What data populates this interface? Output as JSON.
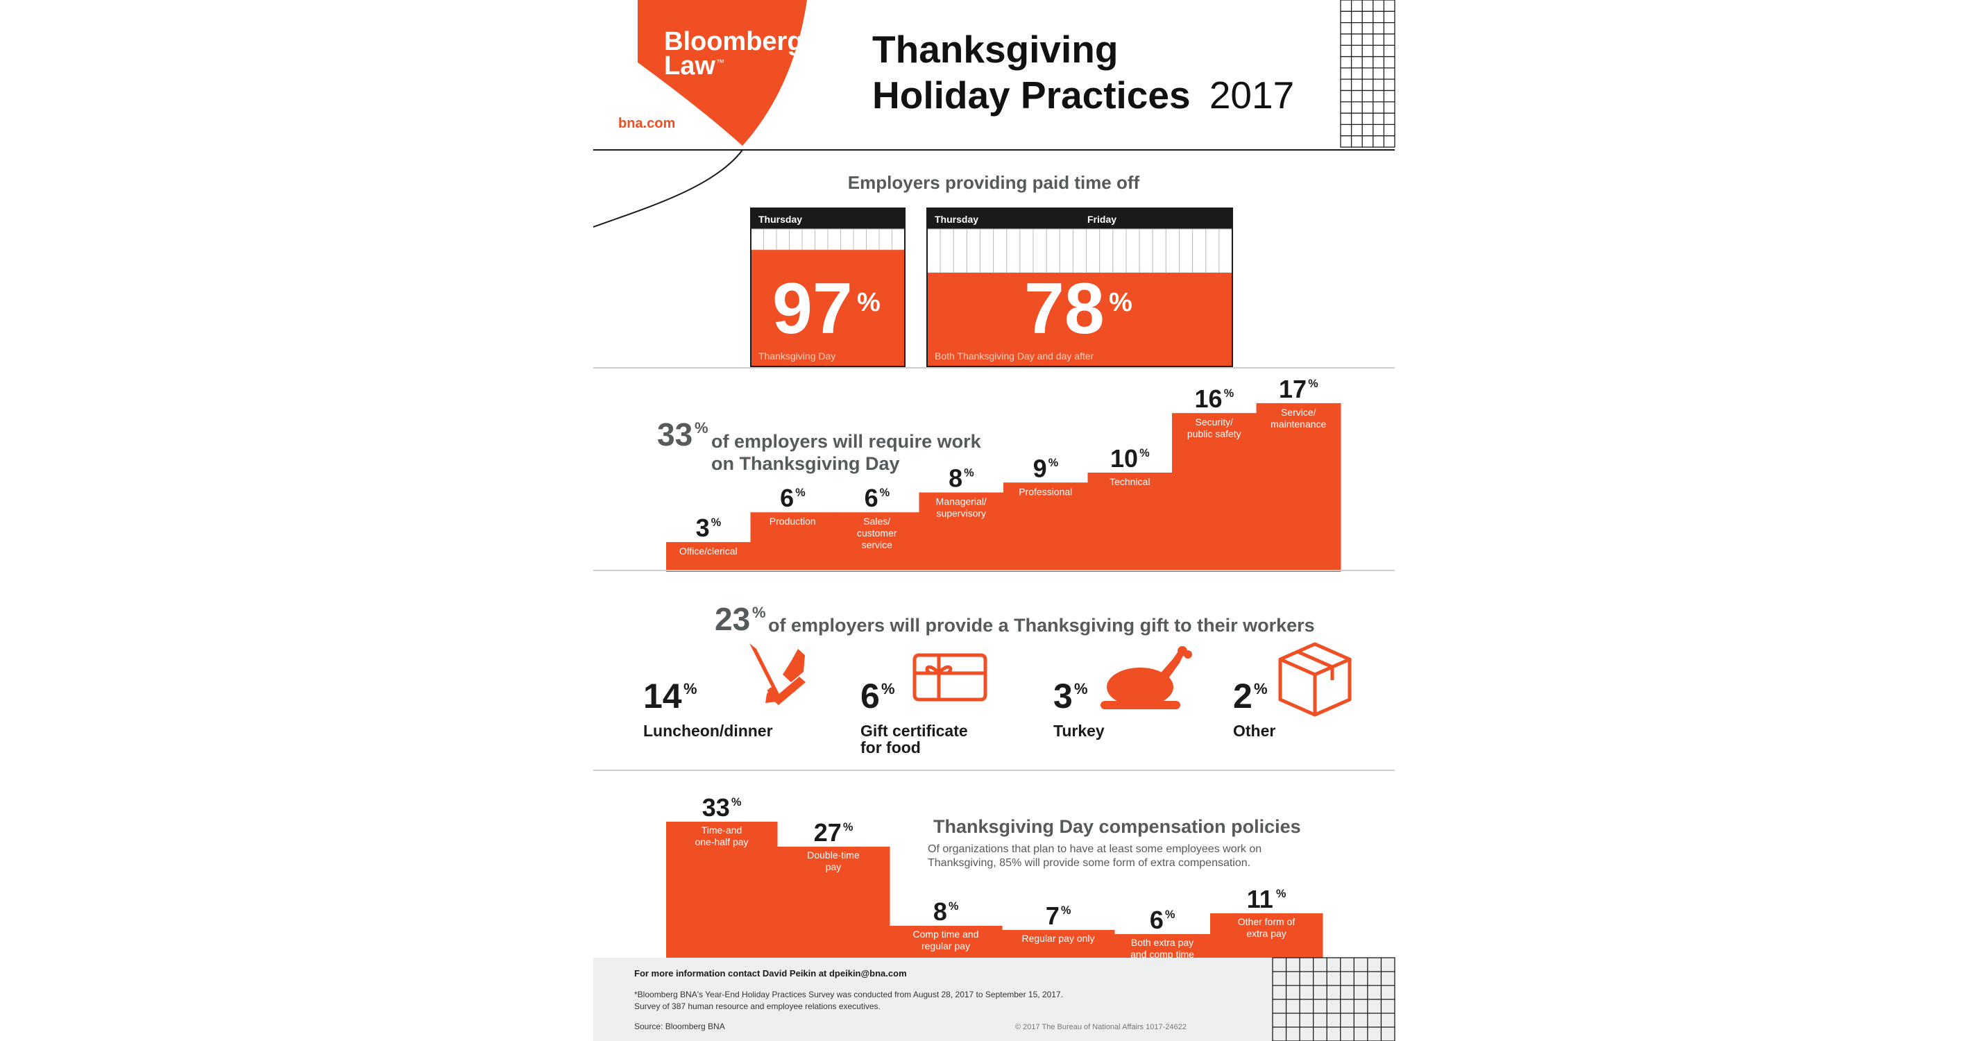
{
  "colors": {
    "accent": "#f04e23",
    "dark": "#1a1a1a",
    "gray": "#555a5c",
    "footer_bg": "#eef0ef"
  },
  "brand": {
    "logo_line1": "Bloomberg",
    "logo_line2": "Law",
    "tm": "™",
    "url": "bna.com"
  },
  "title": {
    "line1": "Thanksgiving",
    "line2_bold": "Holiday Practices",
    "year": "2017"
  },
  "pto": {
    "heading": "Employers providing paid time off",
    "cards": [
      {
        "days": [
          "Thursday"
        ],
        "value": 97,
        "caption": "Thanksgiving Day"
      },
      {
        "days": [
          "Thursday",
          "Friday"
        ],
        "value": 78,
        "caption": "Both Thanksgiving Day and day after"
      }
    ]
  },
  "work": {
    "pct": 33,
    "line1": "of employers will require work",
    "line2": "on Thanksgiving Day"
  },
  "gift": {
    "pct": 23,
    "text": "of employers will provide a Thanksgiving gift to their workers"
  },
  "comp": {
    "heading": "Thanksgiving Day compensation policies",
    "note1": "Of organizations that plan to have at least some employees work on",
    "note2": "Thanksgiving, 85% will provide some form of extra compensation."
  },
  "percent_sign": "%",
  "chart_data": [
    {
      "type": "bar",
      "title": "33% of employers will require work on Thanksgiving Day",
      "categories": [
        [
          "Office/clerical"
        ],
        [
          "Production"
        ],
        [
          "Sales/",
          "customer",
          "service"
        ],
        [
          "Managerial/",
          "supervisory"
        ],
        [
          "Professional"
        ],
        [
          "Technical"
        ],
        [
          "Security/",
          "public safety"
        ],
        [
          "Service/",
          "maintenance"
        ]
      ],
      "values": [
        3,
        6,
        6,
        8,
        9,
        10,
        16,
        17
      ],
      "unit": "%"
    },
    {
      "type": "table",
      "title": "23% of employers will provide a Thanksgiving gift to their workers",
      "items": [
        {
          "value": 14,
          "label": [
            "Luncheon/dinner"
          ],
          "icon": "fork-knife-icon"
        },
        {
          "value": 6,
          "label": [
            "Gift certificate",
            "for food"
          ],
          "icon": "gift-certificate-icon"
        },
        {
          "value": 3,
          "label": [
            "Turkey"
          ],
          "icon": "turkey-icon"
        },
        {
          "value": 2,
          "label": [
            "Other"
          ],
          "icon": "box-icon"
        }
      ],
      "unit": "%"
    },
    {
      "type": "bar",
      "title": "Thanksgiving Day compensation policies",
      "categories": [
        [
          "Time-and",
          "one-half pay"
        ],
        [
          "Double-time",
          "pay"
        ],
        [
          "Comp time and",
          "regular pay"
        ],
        [
          "Regular pay only"
        ],
        [
          "Both extra pay",
          "and comp time"
        ],
        [
          "Other form of",
          "extra pay"
        ]
      ],
      "values": [
        33,
        27,
        8,
        7,
        6,
        11
      ],
      "unit": "%"
    }
  ],
  "footer": {
    "contact": "For more information contact David Peikin at dpeikin@bna.com",
    "survey1": "*Bloomberg BNA's Year-End Holiday Practices Survey was conducted from August 28, 2017 to September 15, 2017.",
    "survey2": "Survey of 387 human resource and employee relations executives.",
    "source": "Source:  Bloomberg BNA",
    "copyright": "© 2017 The Bureau of National Affairs     1017-24622"
  }
}
